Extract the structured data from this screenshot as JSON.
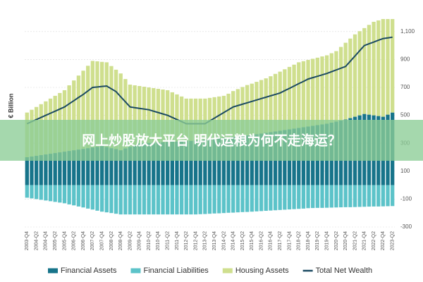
{
  "chart_data": {
    "type": "bar",
    "y_label": "€ Billion",
    "categories": [
      "2003-Q4",
      null,
      "2004-Q2",
      null,
      "2004-Q4",
      null,
      "2005-Q2",
      null,
      "2005-Q4",
      null,
      "2006-Q2",
      null,
      "2006-Q4",
      null,
      "2007-Q2",
      null,
      "2007-Q4",
      null,
      "2008-Q2",
      null,
      "2008-Q4",
      null,
      "2009-Q2",
      null,
      "2009-Q4",
      null,
      "2010-Q2",
      null,
      "2010-Q4",
      null,
      "2011-Q2",
      null,
      "2011-Q4",
      null,
      "2012-Q2",
      null,
      "2012-Q4",
      null,
      "2013-Q2",
      null,
      "2013-Q4",
      null,
      "2014-Q2",
      null,
      "2014-Q4",
      null,
      "2015-Q2",
      null,
      "2015-Q4",
      null,
      "2016-Q2",
      null,
      "2016-Q4",
      null,
      "2017-Q2",
      null,
      "2017-Q4",
      null,
      "2018-Q2",
      null,
      "2018-Q4",
      null,
      "2019-Q2",
      null,
      "2019-Q4",
      null,
      "2020-Q2",
      null,
      "2020-Q4",
      null,
      "2021-Q2",
      null,
      "2021-Q4",
      null,
      "2022-Q2",
      null,
      "2022-Q4",
      null,
      "2023-Q2"
    ],
    "series": [
      {
        "name": "Financial Assets",
        "type": "bar",
        "color": "#17748a",
        "values": [
          200,
          205,
          210,
          215,
          220,
          225,
          230,
          235,
          240,
          245,
          250,
          255,
          260,
          265,
          270,
          275,
          280,
          273,
          265,
          258,
          250,
          263,
          275,
          288,
          300,
          302,
          303,
          305,
          307,
          308,
          310,
          312,
          313,
          315,
          317,
          318,
          320,
          323,
          327,
          330,
          333,
          337,
          340,
          343,
          347,
          350,
          353,
          357,
          360,
          365,
          370,
          375,
          380,
          385,
          390,
          395,
          400,
          405,
          410,
          415,
          420,
          425,
          430,
          435,
          440,
          448,
          455,
          463,
          470,
          480,
          490,
          500,
          510,
          505,
          500,
          495,
          490,
          505,
          520
        ]
      },
      {
        "name": "Financial Liabilities",
        "type": "bar",
        "color": "#5cc3c9",
        "values": [
          -90,
          -95,
          -100,
          -105,
          -110,
          -115,
          -120,
          -125,
          -130,
          -138,
          -145,
          -153,
          -160,
          -168,
          -175,
          -183,
          -190,
          -195,
          -200,
          -205,
          -210,
          -210,
          -210,
          -210,
          -210,
          -210,
          -210,
          -210,
          -210,
          -210,
          -210,
          -210,
          -210,
          -210,
          -210,
          -210,
          -210,
          -208,
          -207,
          -205,
          -203,
          -202,
          -200,
          -198,
          -197,
          -195,
          -193,
          -192,
          -190,
          -188,
          -186,
          -184,
          -182,
          -180,
          -178,
          -176,
          -174,
          -172,
          -170,
          -168,
          -165,
          -164,
          -163,
          -163,
          -162,
          -161,
          -160,
          -159,
          -158,
          -158,
          -157,
          -156,
          -155,
          -154,
          -153,
          -153,
          -152,
          -151,
          -150
        ]
      },
      {
        "name": "Housing Assets",
        "type": "bar",
        "color": "#cfdf8e",
        "values": [
          320,
          335,
          350,
          365,
          380,
          395,
          410,
          425,
          440,
          470,
          500,
          530,
          560,
          590,
          620,
          612,
          603,
          607,
          588,
          569,
          550,
          497,
          445,
          427,
          410,
          403,
          397,
          390,
          383,
          377,
          370,
          353,
          337,
          320,
          303,
          302,
          300,
          297,
          293,
          295,
          297,
          298,
          300,
          312,
          327,
          338,
          350,
          360,
          367,
          375,
          383,
          390,
          400,
          412,
          423,
          435,
          447,
          458,
          470,
          473,
          477,
          480,
          483,
          487,
          490,
          497,
          505,
          527,
          550,
          570,
          590,
          603,
          615,
          643,
          670,
          685,
          700,
          685,
          670
        ]
      },
      {
        "name": "Total Net Wealth",
        "type": "line",
        "color": "#1b4a62",
        "values": [
          440,
          455,
          470,
          485,
          500,
          515,
          530,
          545,
          560,
          583,
          605,
          628,
          650,
          675,
          700,
          703,
          707,
          710,
          690,
          670,
          633,
          597,
          560,
          555,
          550,
          545,
          540,
          530,
          520,
          510,
          500,
          485,
          470,
          455,
          440,
          440,
          440,
          440,
          440,
          460,
          480,
          500,
          520,
          540,
          560,
          570,
          580,
          590,
          600,
          610,
          620,
          630,
          640,
          650,
          660,
          677,
          693,
          710,
          727,
          743,
          760,
          770,
          780,
          790,
          800,
          813,
          825,
          838,
          850,
          888,
          925,
          963,
          1000,
          1013,
          1025,
          1038,
          1050,
          1055,
          1060
        ]
      }
    ],
    "ylim": [
      -300,
      1200
    ],
    "yticks": [
      -300,
      -100,
      100,
      300,
      500,
      700,
      900,
      {
        "value": 1100,
        "label": "1,100"
      }
    ],
    "grid": true,
    "legend": "bottom"
  },
  "banner": {
    "text": "网上炒股放大平台 明代运粮为何不走海运？"
  }
}
